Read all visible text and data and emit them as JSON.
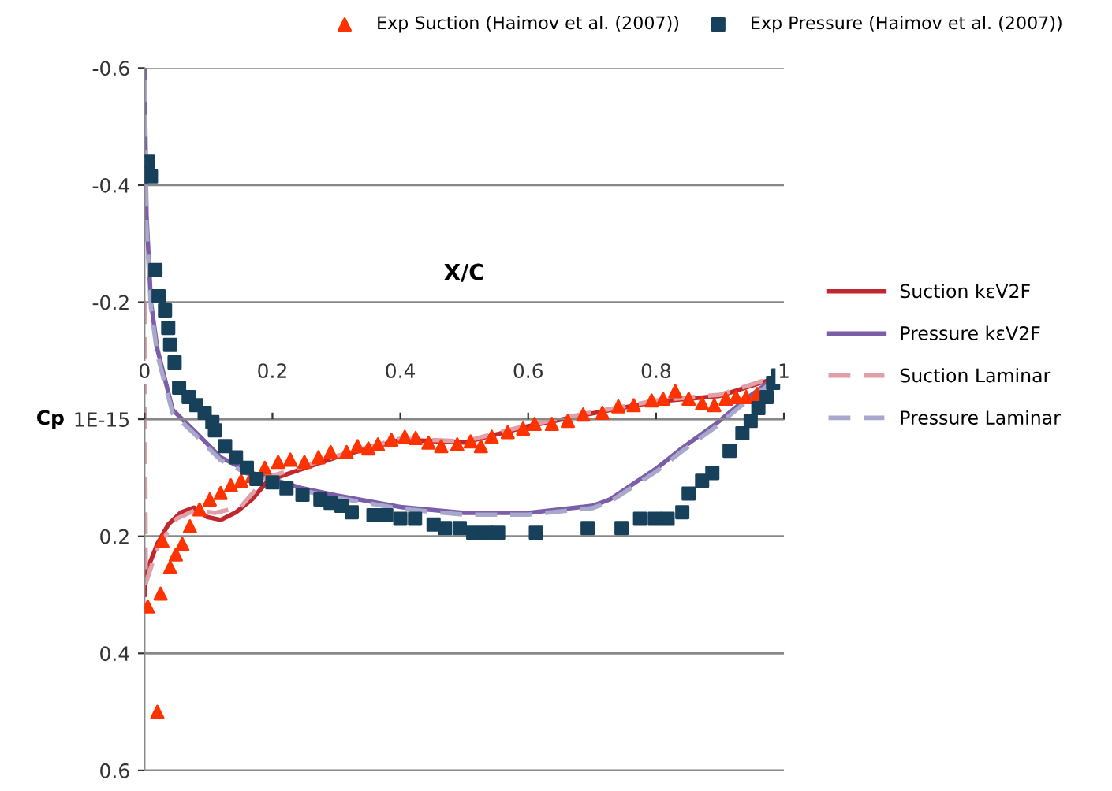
{
  "chart_data": {
    "type": "line",
    "xlabel": "X/C",
    "ylabel": "Cp",
    "xlim": [
      0,
      1
    ],
    "xticks": [
      0,
      0.2,
      0.4,
      0.6,
      0.8,
      1
    ],
    "ylim": [
      0.6,
      -0.6
    ],
    "yticks": [
      -0.6,
      -0.4,
      -0.2,
      {
        "value": 0,
        "label": "1E-15"
      },
      0.2,
      0.4,
      0.6
    ],
    "grid": "y",
    "legend": "right",
    "series": [
      {
        "name": "Exp Suction (Haimov et al. (2007))",
        "type": "scatter",
        "marker": "triangle",
        "color": "#ff3300",
        "x": [
          0.005,
          0.02,
          0.025,
          0.028,
          0.04,
          0.049,
          0.059,
          0.071,
          0.086,
          0.102,
          0.119,
          0.135,
          0.151,
          0.168,
          0.188,
          0.209,
          0.228,
          0.25,
          0.272,
          0.291,
          0.316,
          0.333,
          0.35,
          0.365,
          0.386,
          0.407,
          0.424,
          0.444,
          0.464,
          0.489,
          0.51,
          0.526,
          0.543,
          0.568,
          0.592,
          0.61,
          0.637,
          0.662,
          0.686,
          0.716,
          0.741,
          0.765,
          0.793,
          0.811,
          0.83,
          0.851,
          0.872,
          0.891,
          0.909,
          0.925,
          0.941,
          0.958
        ],
        "values": [
          0.32,
          0.5,
          0.298,
          0.208,
          0.253,
          0.231,
          0.213,
          0.183,
          0.154,
          0.137,
          0.126,
          0.113,
          0.105,
          0.097,
          0.083,
          0.073,
          0.069,
          0.073,
          0.065,
          0.056,
          0.056,
          0.046,
          0.05,
          0.043,
          0.035,
          0.03,
          0.032,
          0.04,
          0.046,
          0.043,
          0.038,
          0.046,
          0.03,
          0.022,
          0.016,
          0.008,
          0.008,
          0.003,
          -0.008,
          -0.011,
          -0.022,
          -0.024,
          -0.032,
          -0.035,
          -0.048,
          -0.035,
          -0.027,
          -0.024,
          -0.035,
          -0.038,
          -0.038,
          -0.043
        ]
      },
      {
        "name": "Exp Pressure (Haimov et al. (2007))",
        "type": "scatter",
        "marker": "square",
        "color": "#17415a",
        "x": [
          0.005,
          0.01,
          0.017,
          0.022,
          0.032,
          0.037,
          0.04,
          0.047,
          0.054,
          0.069,
          0.081,
          0.094,
          0.106,
          0.11,
          0.126,
          0.143,
          0.16,
          0.175,
          0.2,
          0.222,
          0.247,
          0.275,
          0.291,
          0.308,
          0.324,
          0.358,
          0.378,
          0.4,
          0.423,
          0.452,
          0.47,
          0.493,
          0.514,
          0.534,
          0.553,
          0.612,
          0.693,
          0.746,
          0.775,
          0.798,
          0.818,
          0.841,
          0.851,
          0.872,
          0.888,
          0.915,
          0.935,
          0.948,
          0.96,
          0.973,
          0.983,
          0.991
        ],
        "values": [
          -0.44,
          -0.415,
          -0.255,
          -0.21,
          -0.186,
          -0.156,
          -0.127,
          -0.097,
          -0.054,
          -0.038,
          -0.024,
          -0.011,
          0.005,
          0.019,
          0.046,
          0.065,
          0.083,
          0.102,
          0.108,
          0.118,
          0.129,
          0.137,
          0.143,
          0.148,
          0.159,
          0.164,
          0.164,
          0.17,
          0.17,
          0.18,
          0.186,
          0.186,
          0.194,
          0.194,
          0.194,
          0.194,
          0.186,
          0.186,
          0.17,
          0.17,
          0.17,
          0.159,
          0.127,
          0.105,
          0.092,
          0.054,
          0.024,
          0.003,
          -0.019,
          -0.038,
          -0.062,
          -0.075
        ]
      },
      {
        "name": "Suction kεV2F",
        "line_style": "solid",
        "color": "#c0282d",
        "x": [
          0,
          0.003,
          0.02,
          0.037,
          0.057,
          0.077,
          0.098,
          0.119,
          0.143,
          0.168,
          0.193,
          0.3,
          0.4,
          0.5,
          0.6,
          0.7,
          0.8,
          0.9,
          1.0
        ],
        "values": [
          0.3,
          0.26,
          0.213,
          0.18,
          0.159,
          0.151,
          0.167,
          0.172,
          0.159,
          0.137,
          0.105,
          0.065,
          0.035,
          0.04,
          0.012,
          -0.01,
          -0.03,
          -0.04,
          -0.075
        ]
      },
      {
        "name": "Pressure kεV2F",
        "line_style": "solid",
        "color": "#7b5ea7",
        "x": [
          0,
          0.003,
          0.01,
          0.02,
          0.044,
          0.077,
          0.119,
          0.168,
          0.247,
          0.3,
          0.4,
          0.5,
          0.6,
          0.7,
          0.728,
          0.802,
          0.84,
          0.891,
          0.941,
          0.998
        ],
        "values": [
          -0.6,
          -0.35,
          -0.2,
          -0.12,
          -0.016,
          0.019,
          0.065,
          0.092,
          0.118,
          0.13,
          0.15,
          0.16,
          0.16,
          0.148,
          0.137,
          0.083,
          0.05,
          0.01,
          -0.035,
          -0.08
        ]
      },
      {
        "name": "Suction Laminar",
        "line_style": "dashed",
        "color": "#e0a0a8",
        "x": [
          0,
          0.002,
          0.02,
          0.05,
          0.08,
          0.11,
          0.15,
          0.19,
          0.3,
          0.4,
          0.5,
          0.6,
          0.7,
          0.8,
          0.9,
          1.0
        ],
        "values": [
          -0.2,
          0.28,
          0.22,
          0.17,
          0.155,
          0.16,
          0.15,
          0.1,
          0.063,
          0.033,
          0.038,
          0.01,
          -0.012,
          -0.032,
          -0.042,
          -0.077
        ]
      },
      {
        "name": "Pressure Laminar",
        "line_style": "dashed",
        "color": "#a8a8cc",
        "x": [
          0,
          0.003,
          0.01,
          0.02,
          0.044,
          0.077,
          0.119,
          0.168,
          0.247,
          0.3,
          0.4,
          0.5,
          0.6,
          0.7,
          0.728,
          0.802,
          0.84,
          0.891,
          0.941,
          0.998
        ],
        "values": [
          -0.58,
          -0.33,
          -0.19,
          -0.11,
          -0.01,
          0.024,
          0.07,
          0.097,
          0.122,
          0.134,
          0.153,
          0.163,
          0.163,
          0.152,
          0.141,
          0.088,
          0.055,
          0.015,
          -0.03,
          -0.076
        ]
      }
    ]
  }
}
